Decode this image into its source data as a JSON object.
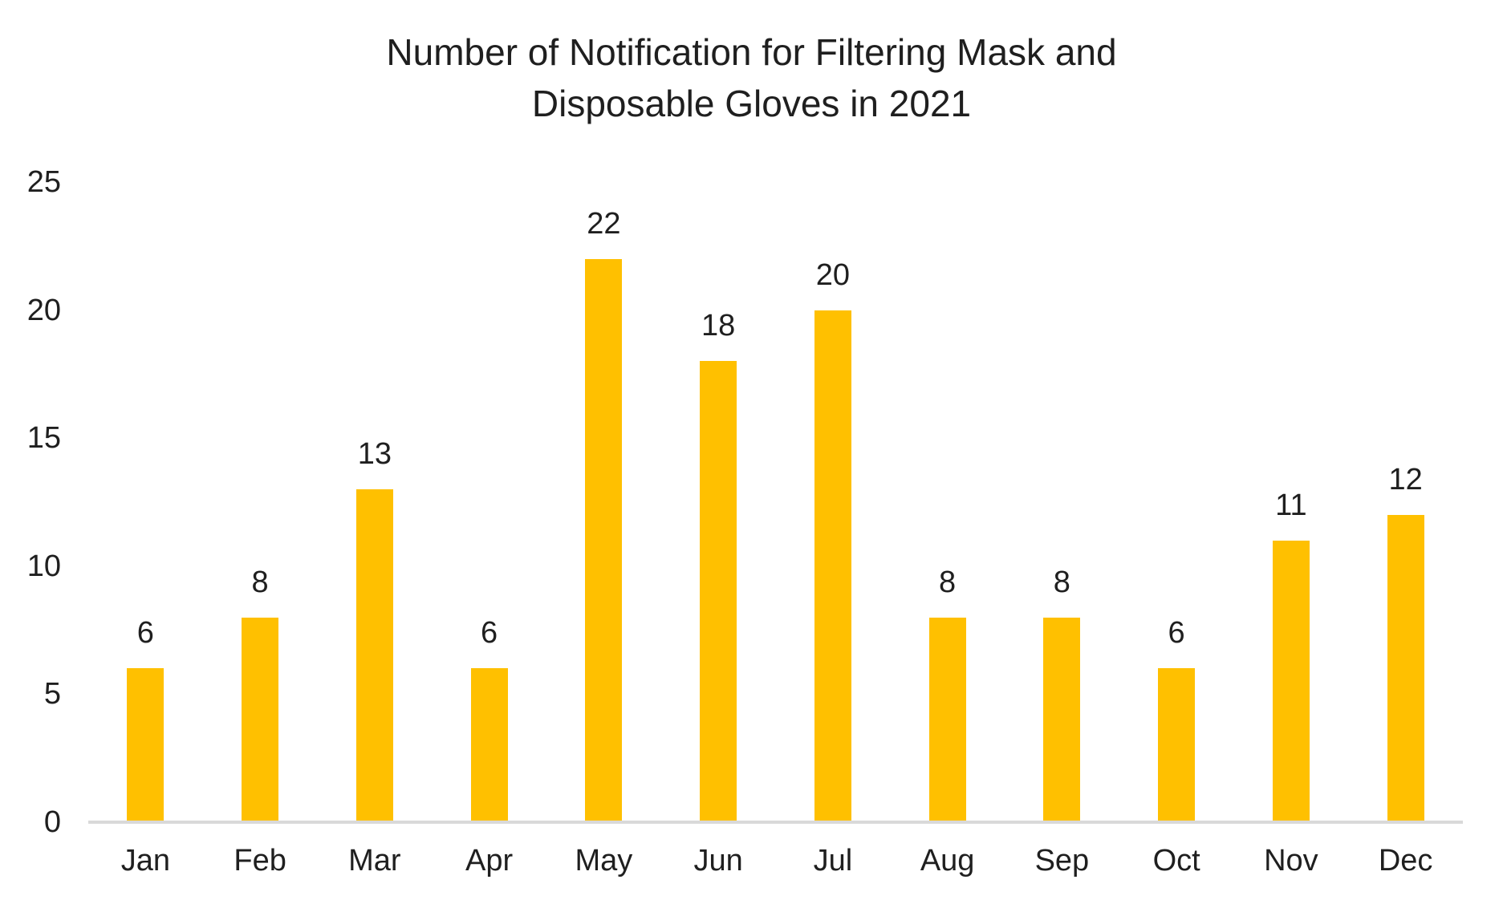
{
  "chart": {
    "title_line1": "Number of Notification for Filtering Mask and",
    "title_line2": "Disposable Gloves in 2021"
  },
  "chart_data": {
    "type": "bar",
    "title": "Number of Notification for Filtering Mask and Disposable Gloves in 2021",
    "categories": [
      "Jan",
      "Feb",
      "Mar",
      "Apr",
      "May",
      "Jun",
      "Jul",
      "Aug",
      "Sep",
      "Oct",
      "Nov",
      "Dec"
    ],
    "values": [
      6,
      8,
      13,
      6,
      22,
      18,
      20,
      8,
      8,
      6,
      11,
      12
    ],
    "data_labels_shown": true,
    "xlabel": "",
    "ylabel": "",
    "ylim": [
      0,
      25
    ],
    "yticks": [
      0,
      5,
      10,
      15,
      20,
      25
    ],
    "grid": false,
    "legend": false,
    "bar_color": "#FFC000",
    "axis_line_color": "#D9D9D9",
    "text_color": "#1f1f1f"
  }
}
